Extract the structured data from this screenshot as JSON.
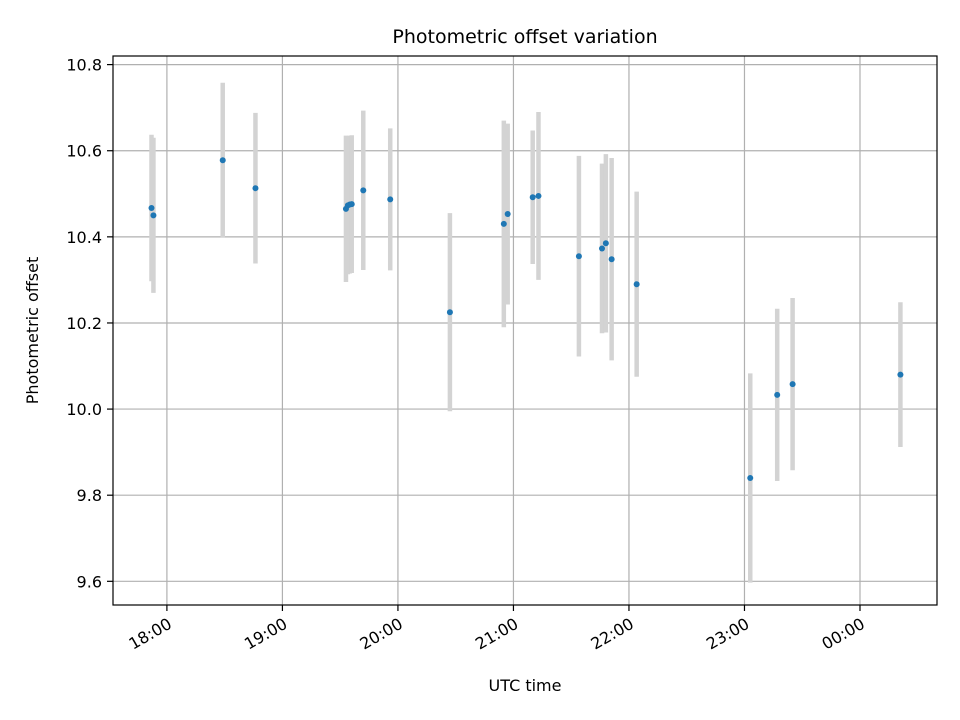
{
  "chart_data": {
    "type": "scatter",
    "title": "Photometric offset variation",
    "xlabel": "UTC time",
    "ylabel": "Photometric offset",
    "x_unit": "UTC clock time (HH:MM); values after midnight written as 24:MM",
    "xlim": [
      "17:32",
      "24:40"
    ],
    "ylim": [
      9.545,
      10.82
    ],
    "grid": true,
    "x_ticks": [
      {
        "x": "18:00",
        "label": "18:00"
      },
      {
        "x": "19:00",
        "label": "19:00"
      },
      {
        "x": "20:00",
        "label": "20:00"
      },
      {
        "x": "21:00",
        "label": "21:00"
      },
      {
        "x": "22:00",
        "label": "22:00"
      },
      {
        "x": "23:00",
        "label": "23:00"
      },
      {
        "x": "24:00",
        "label": "00:00"
      }
    ],
    "y_ticks": [
      9.6,
      9.8,
      10.0,
      10.2,
      10.4,
      10.6,
      10.8
    ],
    "marker_color": "#1f77b4",
    "errorbar_color": "#d3d3d3",
    "points": [
      {
        "x": "17:52",
        "y": 10.467,
        "err": 0.17
      },
      {
        "x": "17:53",
        "y": 10.45,
        "err": 0.18
      },
      {
        "x": "18:29",
        "y": 10.578,
        "err": 0.18
      },
      {
        "x": "18:46",
        "y": 10.513,
        "err": 0.175
      },
      {
        "x": "19:33",
        "y": 10.465,
        "err": 0.17
      },
      {
        "x": "19:34",
        "y": 10.473,
        "err": 0.16
      },
      {
        "x": "19:35",
        "y": 10.475,
        "err": 0.16
      },
      {
        "x": "19:36",
        "y": 10.476,
        "err": 0.16
      },
      {
        "x": "19:42",
        "y": 10.508,
        "err": 0.185
      },
      {
        "x": "19:56",
        "y": 10.487,
        "err": 0.165
      },
      {
        "x": "20:27",
        "y": 10.225,
        "err": 0.23
      },
      {
        "x": "20:55",
        "y": 10.43,
        "err": 0.24
      },
      {
        "x": "20:57",
        "y": 10.453,
        "err": 0.21
      },
      {
        "x": "21:10",
        "y": 10.492,
        "err": 0.155
      },
      {
        "x": "21:13",
        "y": 10.495,
        "err": 0.195
      },
      {
        "x": "21:34",
        "y": 10.355,
        "err": 0.233
      },
      {
        "x": "21:46",
        "y": 10.373,
        "err": 0.197
      },
      {
        "x": "21:48",
        "y": 10.385,
        "err": 0.207
      },
      {
        "x": "21:51",
        "y": 10.348,
        "err": 0.235
      },
      {
        "x": "22:04",
        "y": 10.29,
        "err": 0.215
      },
      {
        "x": "23:03",
        "y": 9.84,
        "err": 0.243
      },
      {
        "x": "23:17",
        "y": 10.033,
        "err": 0.2
      },
      {
        "x": "23:25",
        "y": 10.058,
        "err": 0.2
      },
      {
        "x": "24:21",
        "y": 10.08,
        "err": 0.168
      }
    ]
  }
}
